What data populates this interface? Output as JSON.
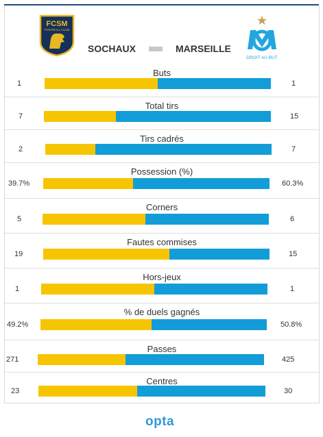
{
  "header": {
    "home_team": "SOCHAUX",
    "away_team": "MARSEILLE",
    "home_crest_text": "FCSM",
    "home_crest_sub": "FOOTBALL CLUB",
    "away_crest_text": "DROIT AU BUT"
  },
  "colors": {
    "home": "#f7c500",
    "away": "#129dd9"
  },
  "stats": [
    {
      "label": "Buts",
      "home": "1",
      "away": "1",
      "home_share": 0.5
    },
    {
      "label": "Total tirs",
      "home": "7",
      "away": "15",
      "home_share": 0.318
    },
    {
      "label": "Tirs cadrés",
      "home": "2",
      "away": "7",
      "home_share": 0.222
    },
    {
      "label": "Possession (%)",
      "home": "39.7%",
      "away": "60.3%",
      "home_share": 0.397
    },
    {
      "label": "Corners",
      "home": "5",
      "away": "6",
      "home_share": 0.455
    },
    {
      "label": "Fautes commises",
      "home": "19",
      "away": "15",
      "home_share": 0.559
    },
    {
      "label": "Hors-jeux",
      "home": "1",
      "away": "1",
      "home_share": 0.5
    },
    {
      "label": "% de duels gagnés",
      "home": "49.2%",
      "away": "50.8%",
      "home_share": 0.492
    },
    {
      "label": "Passes",
      "home": "271",
      "away": "425",
      "home_share": 0.389
    },
    {
      "label": "Centres",
      "home": "23",
      "away": "30",
      "home_share": 0.434
    }
  ],
  "footer": {
    "brand": "opta"
  }
}
